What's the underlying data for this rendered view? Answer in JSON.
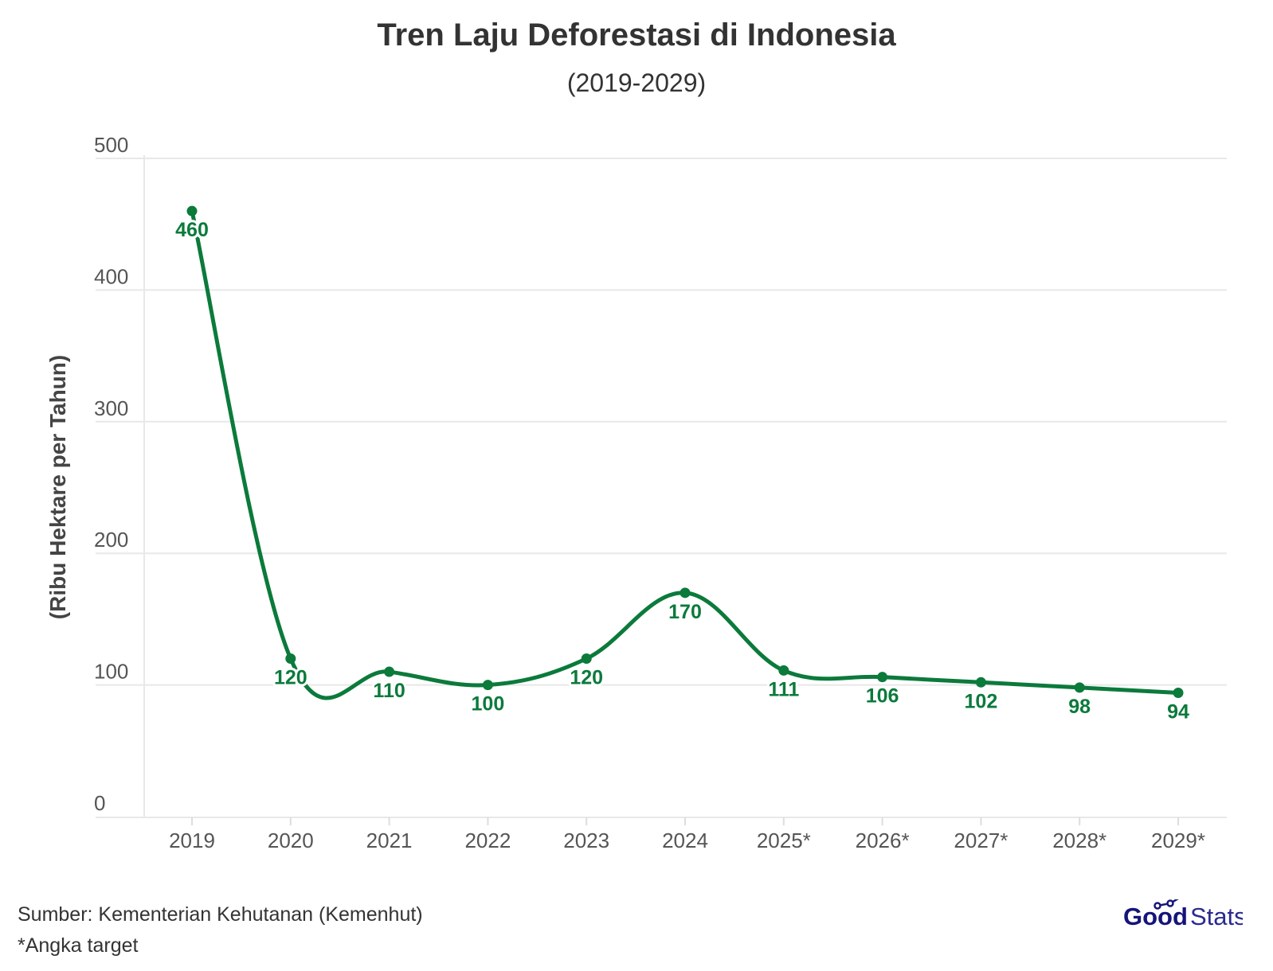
{
  "chart_data": {
    "type": "line",
    "title": "Tren Laju Deforestasi di Indonesia",
    "subtitle": "(2019-2029)",
    "xlabel": "",
    "ylabel": "(Ribu Hektare per Tahun)",
    "categories": [
      "2019",
      "2020",
      "2021",
      "2022",
      "2023",
      "2024",
      "2025*",
      "2026*",
      "2027*",
      "2028*",
      "2029*"
    ],
    "values": [
      460,
      120,
      110,
      100,
      120,
      170,
      111,
      106,
      102,
      98,
      94
    ],
    "ylim": [
      0,
      500
    ],
    "yticks": [
      0,
      100,
      200,
      300,
      400,
      500
    ],
    "grid": true,
    "color": "#0b7a3b",
    "data_labels": true,
    "smooth": true
  },
  "footer": {
    "source": "Sumber: Kementerian Kehutanan (Kemenhut)",
    "note": "*Angka target",
    "logo_text_bold": "Good",
    "logo_text_light": "Stats",
    "logo_color": "#14147a"
  }
}
